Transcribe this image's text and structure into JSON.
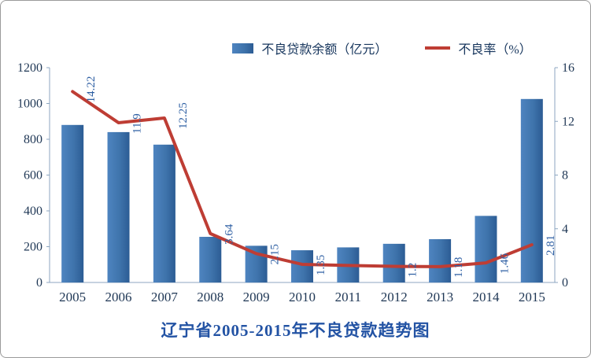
{
  "page": {
    "background": "#ffffff",
    "border_color": "#9a9a9a"
  },
  "colors": {
    "bar_light": "#4e84c0",
    "bar_mid": "#3f74ac",
    "bar_dark": "#2c5c94",
    "line": "#be3d34",
    "axis_line": "#8ca6c0",
    "axis_text": "#1f3755",
    "point_label_text": "#2e5fa3",
    "legend_text": "#17365d",
    "title_text": "#2353a4"
  },
  "chart_data": {
    "type": "bar",
    "subtype": "combo-bar-line",
    "title": "辽宁省2005-2015年不良贷款趋势图",
    "categories": [
      "2005",
      "2006",
      "2007",
      "2008",
      "2009",
      "2010",
      "2011",
      "2012",
      "2013",
      "2014",
      "2015"
    ],
    "series": [
      {
        "name": "不良贷款余额（亿元）",
        "type": "bar",
        "axis": "left",
        "values": [
          880,
          840,
          770,
          255,
          205,
          180,
          196,
          216,
          242,
          372,
          1025
        ]
      },
      {
        "name": "不良率（%）",
        "type": "line",
        "axis": "right",
        "values": [
          14.22,
          11.9,
          12.25,
          3.64,
          2.15,
          1.35,
          1.27,
          1.2,
          1.18,
          1.46,
          2.81
        ],
        "point_labels": [
          "14.22",
          "11.9",
          "12.25",
          "3.64",
          "2.15",
          "1.35",
          "",
          "1.2",
          "1.18",
          "1.46",
          "2.81"
        ]
      }
    ],
    "left_axis": {
      "min": 0,
      "max": 1200,
      "step": 200,
      "ticks": [
        "0",
        "200",
        "400",
        "600",
        "800",
        "1000",
        "1200"
      ]
    },
    "right_axis": {
      "min": 0,
      "max": 16,
      "step": 4,
      "ticks": [
        "0",
        "4",
        "8",
        "12",
        "16"
      ]
    },
    "legend_position": "top",
    "grid": false
  }
}
